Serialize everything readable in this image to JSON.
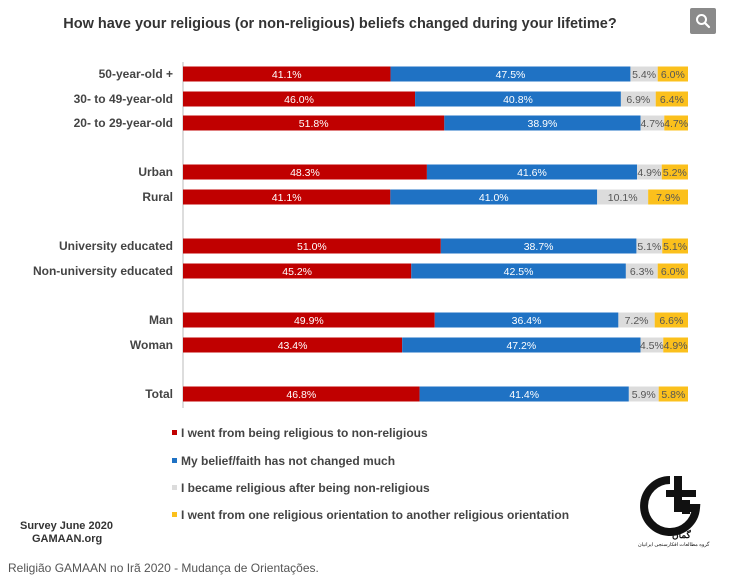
{
  "title": "How have your religious (or non-religious) beliefs changed during your lifetime?",
  "search": {
    "icon": "search-icon"
  },
  "chart_data": {
    "type": "bar",
    "orientation": "horizontal",
    "stacked": true,
    "categories": [
      "50-year-old +",
      "30- to 49-year-old",
      "20- to 29-year-old",
      "Urban",
      "Rural",
      "University educated",
      "Non-university educated",
      "Man",
      "Woman",
      "Total"
    ],
    "groups": [
      [
        0,
        1,
        2
      ],
      [
        3,
        4
      ],
      [
        5,
        6
      ],
      [
        7,
        8
      ],
      [
        9
      ]
    ],
    "series": [
      {
        "name": "I went from being religious to non-religious",
        "color": "#c00000",
        "values": [
          41.1,
          46.0,
          51.8,
          48.3,
          41.1,
          51.0,
          45.2,
          49.9,
          43.4,
          46.8
        ],
        "labels": [
          "41.1%",
          "46.0%",
          "51.8%",
          "48.3%",
          "41.1%",
          "51.0%",
          "45.2%",
          "49.9%",
          "43.4%",
          "46.8%"
        ]
      },
      {
        "name": "My belief/faith has not changed much",
        "color": "#1f72c4",
        "values": [
          47.5,
          40.8,
          38.9,
          41.6,
          41.0,
          38.7,
          42.5,
          36.4,
          47.2,
          41.4
        ],
        "labels": [
          "47.5%",
          "40.8%",
          "38.9%",
          "41.6%",
          "41.0%",
          "38.7%",
          "42.5%",
          "36.4%",
          "47.2%",
          "41.4%"
        ]
      },
      {
        "name": "I became religious after being non-religious",
        "color": "#dcdcdc",
        "values": [
          5.4,
          6.9,
          4.7,
          4.9,
          10.1,
          5.1,
          6.3,
          7.2,
          4.5,
          5.9
        ],
        "labels": [
          "5.4%",
          "6.9%",
          "4.7%",
          "4.9%",
          "10.1%",
          "5.1%",
          "6.3%",
          "7.2%",
          "4.5%",
          "5.9%"
        ]
      },
      {
        "name": "I went from one religious orientation to another religious orientation",
        "color": "#fbc01c",
        "values": [
          6.0,
          6.4,
          4.7,
          5.2,
          7.9,
          5.1,
          6.0,
          6.6,
          4.9,
          5.8
        ],
        "labels": [
          "6.0%",
          "6.4%",
          "4.7%",
          "5.2%",
          "7.9%",
          "5.1%",
          "6.0%",
          "6.6%",
          "4.9%",
          "5.8%"
        ]
      }
    ],
    "xlim": [
      0,
      100
    ],
    "grid": false,
    "legend_position": "bottom"
  },
  "footer": {
    "survey_line1": "Survey June 2020",
    "survey_line2": "GAMAAN.org",
    "logo_text": "گمان",
    "logo_subtext": "گروه مطالعات افکارسنجی ایرانیان"
  },
  "caption": "Religião GAMAAN no Irã 2020 - Mudança de Orientações."
}
